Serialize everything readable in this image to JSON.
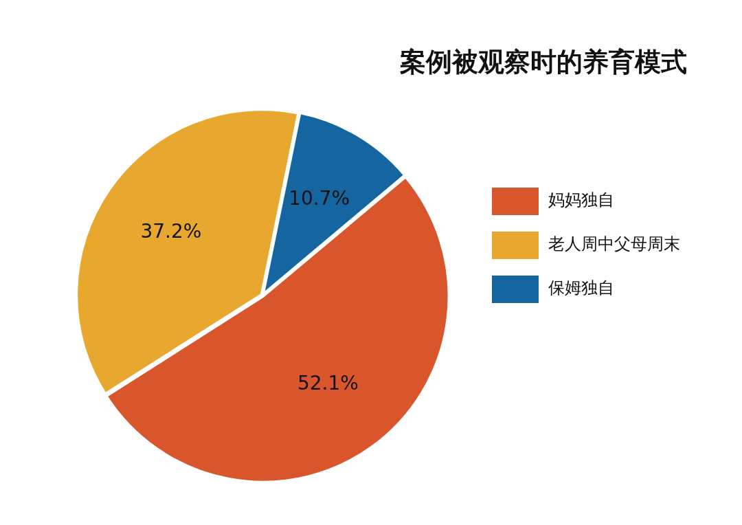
{
  "chart_data": {
    "type": "pie",
    "title": "案例被观察时的养育模式",
    "categories": [
      "妈妈独自",
      "老人周中父母周末",
      "保姆独自"
    ],
    "values": [
      52.1,
      37.2,
      10.7
    ],
    "colors": [
      "#d9552b",
      "#e8a830",
      "#1565a0"
    ],
    "value_labels": [
      "52.1%",
      "37.2%",
      "10.7%"
    ],
    "legend": "right"
  }
}
